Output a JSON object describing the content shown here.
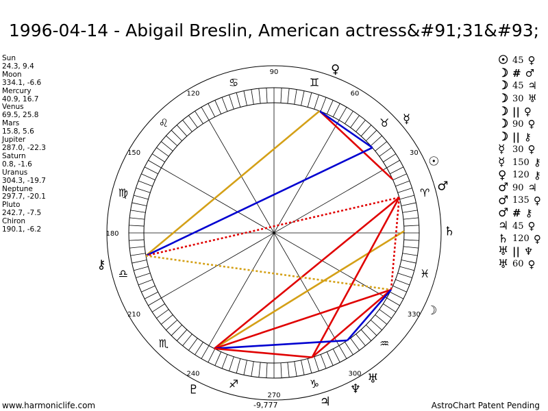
{
  "title": "1996-04-14 - Abigail Breslin, American actress&#91;31&#93;",
  "planets": [
    {
      "name": "Sun",
      "coords": "24.3, 9.4"
    },
    {
      "name": "Moon",
      "coords": "334.1, -6.6"
    },
    {
      "name": "Mercury",
      "coords": "40.9, 16.7"
    },
    {
      "name": "Venus",
      "coords": "69.5, 25.8"
    },
    {
      "name": "Mars",
      "coords": "15.8, 5.6"
    },
    {
      "name": "Jupiter",
      "coords": "287.0, -22.3"
    },
    {
      "name": "Saturn",
      "coords": "0.8, -1.6"
    },
    {
      "name": "Uranus",
      "coords": "304.3, -19.7"
    },
    {
      "name": "Neptune",
      "coords": "297.7, -20.1"
    },
    {
      "name": "Pluto",
      "coords": "242.7, -7.5"
    },
    {
      "name": "Chiron",
      "coords": "190.1, -6.2"
    }
  ],
  "aspects": [
    {
      "p1": "☉",
      "aspect": "45",
      "p2": "♀"
    },
    {
      "p1": "☽",
      "aspect": "#",
      "p2": "♂"
    },
    {
      "p1": "☽",
      "aspect": "45",
      "p2": "♃"
    },
    {
      "p1": "☽",
      "aspect": "30",
      "p2": "♅"
    },
    {
      "p1": "☽",
      "aspect": "||",
      "p2": "♀"
    },
    {
      "p1": "☽",
      "aspect": "90",
      "p2": "♀"
    },
    {
      "p1": "☽",
      "aspect": "||",
      "p2": "⚷"
    },
    {
      "p1": "☿",
      "aspect": "30",
      "p2": "♀"
    },
    {
      "p1": "☿",
      "aspect": "150",
      "p2": "⚷"
    },
    {
      "p1": "♀",
      "aspect": "120",
      "p2": "⚷"
    },
    {
      "p1": "♂",
      "aspect": "90",
      "p2": "♃"
    },
    {
      "p1": "♂",
      "aspect": "135",
      "p2": "♀"
    },
    {
      "p1": "♂",
      "aspect": "#",
      "p2": "⚷"
    },
    {
      "p1": "♃",
      "aspect": "45",
      "p2": "♀"
    },
    {
      "p1": "♄",
      "aspect": "120",
      "p2": "♀"
    },
    {
      "p1": "♅",
      "aspect": "||",
      "p2": "♆"
    },
    {
      "p1": "♅",
      "aspect": "60",
      "p2": "♀"
    }
  ],
  "degree_labels": [
    {
      "text": "90",
      "deg": 90
    },
    {
      "text": "60",
      "deg": 60
    },
    {
      "text": "30",
      "deg": 30
    },
    {
      "text": "120",
      "deg": 120
    },
    {
      "text": "150",
      "deg": 150
    },
    {
      "text": "180",
      "deg": 180
    },
    {
      "text": "210",
      "deg": 210
    },
    {
      "text": "240",
      "deg": 240
    },
    {
      "text": "270",
      "deg": 270
    },
    {
      "text": "300",
      "deg": 300
    },
    {
      "text": "330",
      "deg": 330
    }
  ],
  "zodiac_signs": [
    {
      "glyph": "♈",
      "deg": 15
    },
    {
      "glyph": "♉",
      "deg": 45
    },
    {
      "glyph": "♊",
      "deg": 75
    },
    {
      "glyph": "♋",
      "deg": 105
    },
    {
      "glyph": "♌",
      "deg": 135
    },
    {
      "glyph": "♍",
      "deg": 165
    },
    {
      "glyph": "♎",
      "deg": 195
    },
    {
      "glyph": "♏",
      "deg": 225
    },
    {
      "glyph": "♐",
      "deg": 255
    },
    {
      "glyph": "♑",
      "deg": 285
    },
    {
      "glyph": "♒",
      "deg": 315
    },
    {
      "glyph": "♓",
      "deg": 345
    }
  ],
  "planet_glyphs": [
    {
      "name": "sun",
      "glyph": "☉",
      "deg": 24.3
    },
    {
      "name": "moon",
      "glyph": "☽",
      "deg": 334.1
    },
    {
      "name": "mercury",
      "glyph": "☿",
      "deg": 40.9
    },
    {
      "name": "venus",
      "glyph": "♀",
      "deg": 69.5
    },
    {
      "name": "mars",
      "glyph": "♂",
      "deg": 15.8
    },
    {
      "name": "jupiter",
      "glyph": "♃",
      "deg": 287.0
    },
    {
      "name": "saturn",
      "glyph": "♄",
      "deg": 0.8
    },
    {
      "name": "uranus",
      "glyph": "♅",
      "deg": 304.3
    },
    {
      "name": "neptune",
      "glyph": "♆",
      "deg": 297.7
    },
    {
      "name": "pluto",
      "glyph": "♇",
      "deg": 242.7
    },
    {
      "name": "chiron",
      "glyph": "⚷",
      "deg": 190.1
    }
  ],
  "aspect_lines": [
    {
      "a": 24.3,
      "b": 69.5,
      "color": "#e00000",
      "style": "solid"
    },
    {
      "a": 40.9,
      "b": 69.5,
      "color": "#0000d0",
      "style": "solid"
    },
    {
      "a": 69.5,
      "b": 190.1,
      "color": "#d4a017",
      "style": "solid"
    },
    {
      "a": 40.9,
      "b": 190.1,
      "color": "#0000d0",
      "style": "solid"
    },
    {
      "a": 0.8,
      "b": 242.7,
      "color": "#d4a017",
      "style": "solid"
    },
    {
      "a": 15.8,
      "b": 190.1,
      "color": "#e00000",
      "style": "dotted"
    },
    {
      "a": 15.8,
      "b": 334.1,
      "color": "#e00000",
      "style": "dotted"
    },
    {
      "a": 15.8,
      "b": 287.0,
      "color": "#e00000",
      "style": "solid"
    },
    {
      "a": 15.8,
      "b": 242.7,
      "color": "#e00000",
      "style": "solid"
    },
    {
      "a": 190.1,
      "b": 334.1,
      "color": "#d4a017",
      "style": "dotted"
    },
    {
      "a": 334.1,
      "b": 242.7,
      "color": "#e00000",
      "style": "solid"
    },
    {
      "a": 334.1,
      "b": 287.0,
      "color": "#e00000",
      "style": "solid"
    },
    {
      "a": 334.1,
      "b": 304.3,
      "color": "#0000d0",
      "style": "solid"
    },
    {
      "a": 304.3,
      "b": 242.7,
      "color": "#0000d0",
      "style": "solid"
    },
    {
      "a": 287.0,
      "b": 242.7,
      "color": "#e00000",
      "style": "solid"
    }
  ],
  "footer": {
    "left": "www.harmoniclife.com",
    "center": "-9,777",
    "right": "AstroChart Patent Pending"
  }
}
